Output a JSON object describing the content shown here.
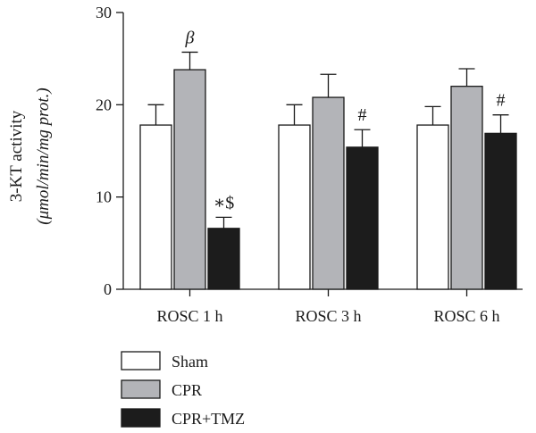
{
  "chart_data": {
    "type": "bar",
    "ylabel_line1": "3-KT activity",
    "ylabel_line2": "(μmol/min/mg prot.)",
    "ylim": [
      0,
      30
    ],
    "yticks": [
      0,
      10,
      20,
      30
    ],
    "categories": [
      "ROSC 1 h",
      "ROSC 3 h",
      "ROSC 6 h"
    ],
    "series": [
      {
        "name": "Sham",
        "color": "#ffffff",
        "values": [
          17.8,
          17.8,
          17.8
        ],
        "errors": [
          2.2,
          2.2,
          2.0
        ],
        "annotations": [
          "",
          "",
          ""
        ]
      },
      {
        "name": "CPR",
        "color": "#b3b4b8",
        "values": [
          23.8,
          20.8,
          22.0
        ],
        "errors": [
          1.9,
          2.5,
          1.9
        ],
        "annotations": [
          "β",
          "",
          ""
        ]
      },
      {
        "name": "CPR+TMZ",
        "color": "#1c1c1c",
        "values": [
          6.6,
          15.4,
          16.9
        ],
        "errors": [
          1.2,
          1.9,
          2.0
        ],
        "annotations": [
          "∗$",
          "#",
          "#"
        ]
      }
    ],
    "legend_position": "bottom-left"
  }
}
